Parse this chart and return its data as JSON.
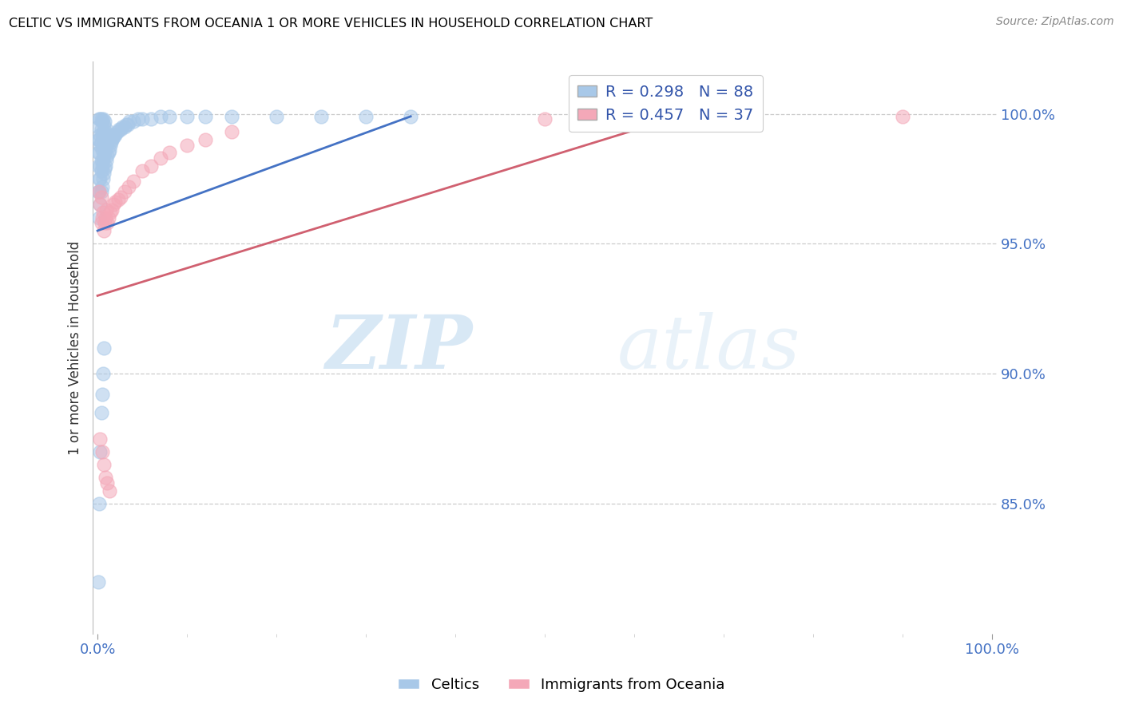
{
  "title": "CELTIC VS IMMIGRANTS FROM OCEANIA 1 OR MORE VEHICLES IN HOUSEHOLD CORRELATION CHART",
  "source": "Source: ZipAtlas.com",
  "ylabel": "1 or more Vehicles in Household",
  "legend_label1": "Celtics",
  "legend_label2": "Immigrants from Oceania",
  "R1": 0.298,
  "N1": 88,
  "R2": 0.457,
  "N2": 37,
  "blue_color": "#a8c8e8",
  "pink_color": "#f4a8b8",
  "blue_line_color": "#4472c4",
  "pink_line_color": "#d06070",
  "watermark_zip": "ZIP",
  "watermark_atlas": "atlas",
  "xlim": [
    0.0,
    1.0
  ],
  "ylim": [
    0.8,
    1.02
  ],
  "ytick_values": [
    0.85,
    0.9,
    0.95,
    1.0
  ],
  "ytick_labels": [
    "85.0%",
    "90.0%",
    "95.0%",
    "100.0%"
  ],
  "blue_x": [
    0.001,
    0.001,
    0.001,
    0.001,
    0.001,
    0.002,
    0.002,
    0.002,
    0.002,
    0.002,
    0.002,
    0.003,
    0.003,
    0.003,
    0.003,
    0.003,
    0.003,
    0.004,
    0.004,
    0.004,
    0.004,
    0.004,
    0.004,
    0.005,
    0.005,
    0.005,
    0.005,
    0.005,
    0.006,
    0.006,
    0.006,
    0.006,
    0.006,
    0.007,
    0.007,
    0.007,
    0.007,
    0.008,
    0.008,
    0.008,
    0.008,
    0.009,
    0.009,
    0.009,
    0.01,
    0.01,
    0.01,
    0.011,
    0.011,
    0.012,
    0.012,
    0.013,
    0.013,
    0.014,
    0.015,
    0.016,
    0.017,
    0.018,
    0.019,
    0.02,
    0.022,
    0.024,
    0.026,
    0.028,
    0.03,
    0.032,
    0.034,
    0.036,
    0.04,
    0.045,
    0.05,
    0.06,
    0.07,
    0.08,
    0.1,
    0.12,
    0.15,
    0.2,
    0.25,
    0.3,
    0.001,
    0.002,
    0.003,
    0.004,
    0.005,
    0.006,
    0.007,
    0.35
  ],
  "blue_y": [
    0.97,
    0.98,
    0.985,
    0.99,
    0.995,
    0.96,
    0.97,
    0.975,
    0.985,
    0.99,
    0.998,
    0.965,
    0.975,
    0.98,
    0.988,
    0.992,
    0.998,
    0.97,
    0.978,
    0.982,
    0.989,
    0.994,
    0.998,
    0.972,
    0.98,
    0.986,
    0.992,
    0.997,
    0.975,
    0.982,
    0.988,
    0.993,
    0.998,
    0.977,
    0.984,
    0.991,
    0.996,
    0.979,
    0.985,
    0.991,
    0.997,
    0.98,
    0.987,
    0.993,
    0.982,
    0.988,
    0.994,
    0.984,
    0.99,
    0.985,
    0.991,
    0.986,
    0.992,
    0.988,
    0.989,
    0.99,
    0.991,
    0.991,
    0.992,
    0.992,
    0.993,
    0.994,
    0.994,
    0.995,
    0.995,
    0.996,
    0.996,
    0.997,
    0.997,
    0.998,
    0.998,
    0.998,
    0.999,
    0.999,
    0.999,
    0.999,
    0.999,
    0.999,
    0.999,
    0.999,
    0.82,
    0.85,
    0.87,
    0.885,
    0.892,
    0.9,
    0.91,
    0.999
  ],
  "pink_x": [
    0.002,
    0.003,
    0.004,
    0.004,
    0.005,
    0.006,
    0.007,
    0.008,
    0.009,
    0.01,
    0.011,
    0.012,
    0.014,
    0.016,
    0.018,
    0.02,
    0.023,
    0.026,
    0.03,
    0.035,
    0.04,
    0.05,
    0.06,
    0.07,
    0.08,
    0.1,
    0.12,
    0.15,
    0.5,
    0.6,
    0.9,
    0.003,
    0.005,
    0.007,
    0.009,
    0.011,
    0.013
  ],
  "pink_y": [
    0.97,
    0.965,
    0.968,
    0.958,
    0.96,
    0.962,
    0.955,
    0.958,
    0.96,
    0.963,
    0.958,
    0.96,
    0.962,
    0.963,
    0.965,
    0.966,
    0.967,
    0.968,
    0.97,
    0.972,
    0.974,
    0.978,
    0.98,
    0.983,
    0.985,
    0.988,
    0.99,
    0.993,
    0.998,
    0.999,
    0.999,
    0.875,
    0.87,
    0.865,
    0.86,
    0.858,
    0.855
  ]
}
